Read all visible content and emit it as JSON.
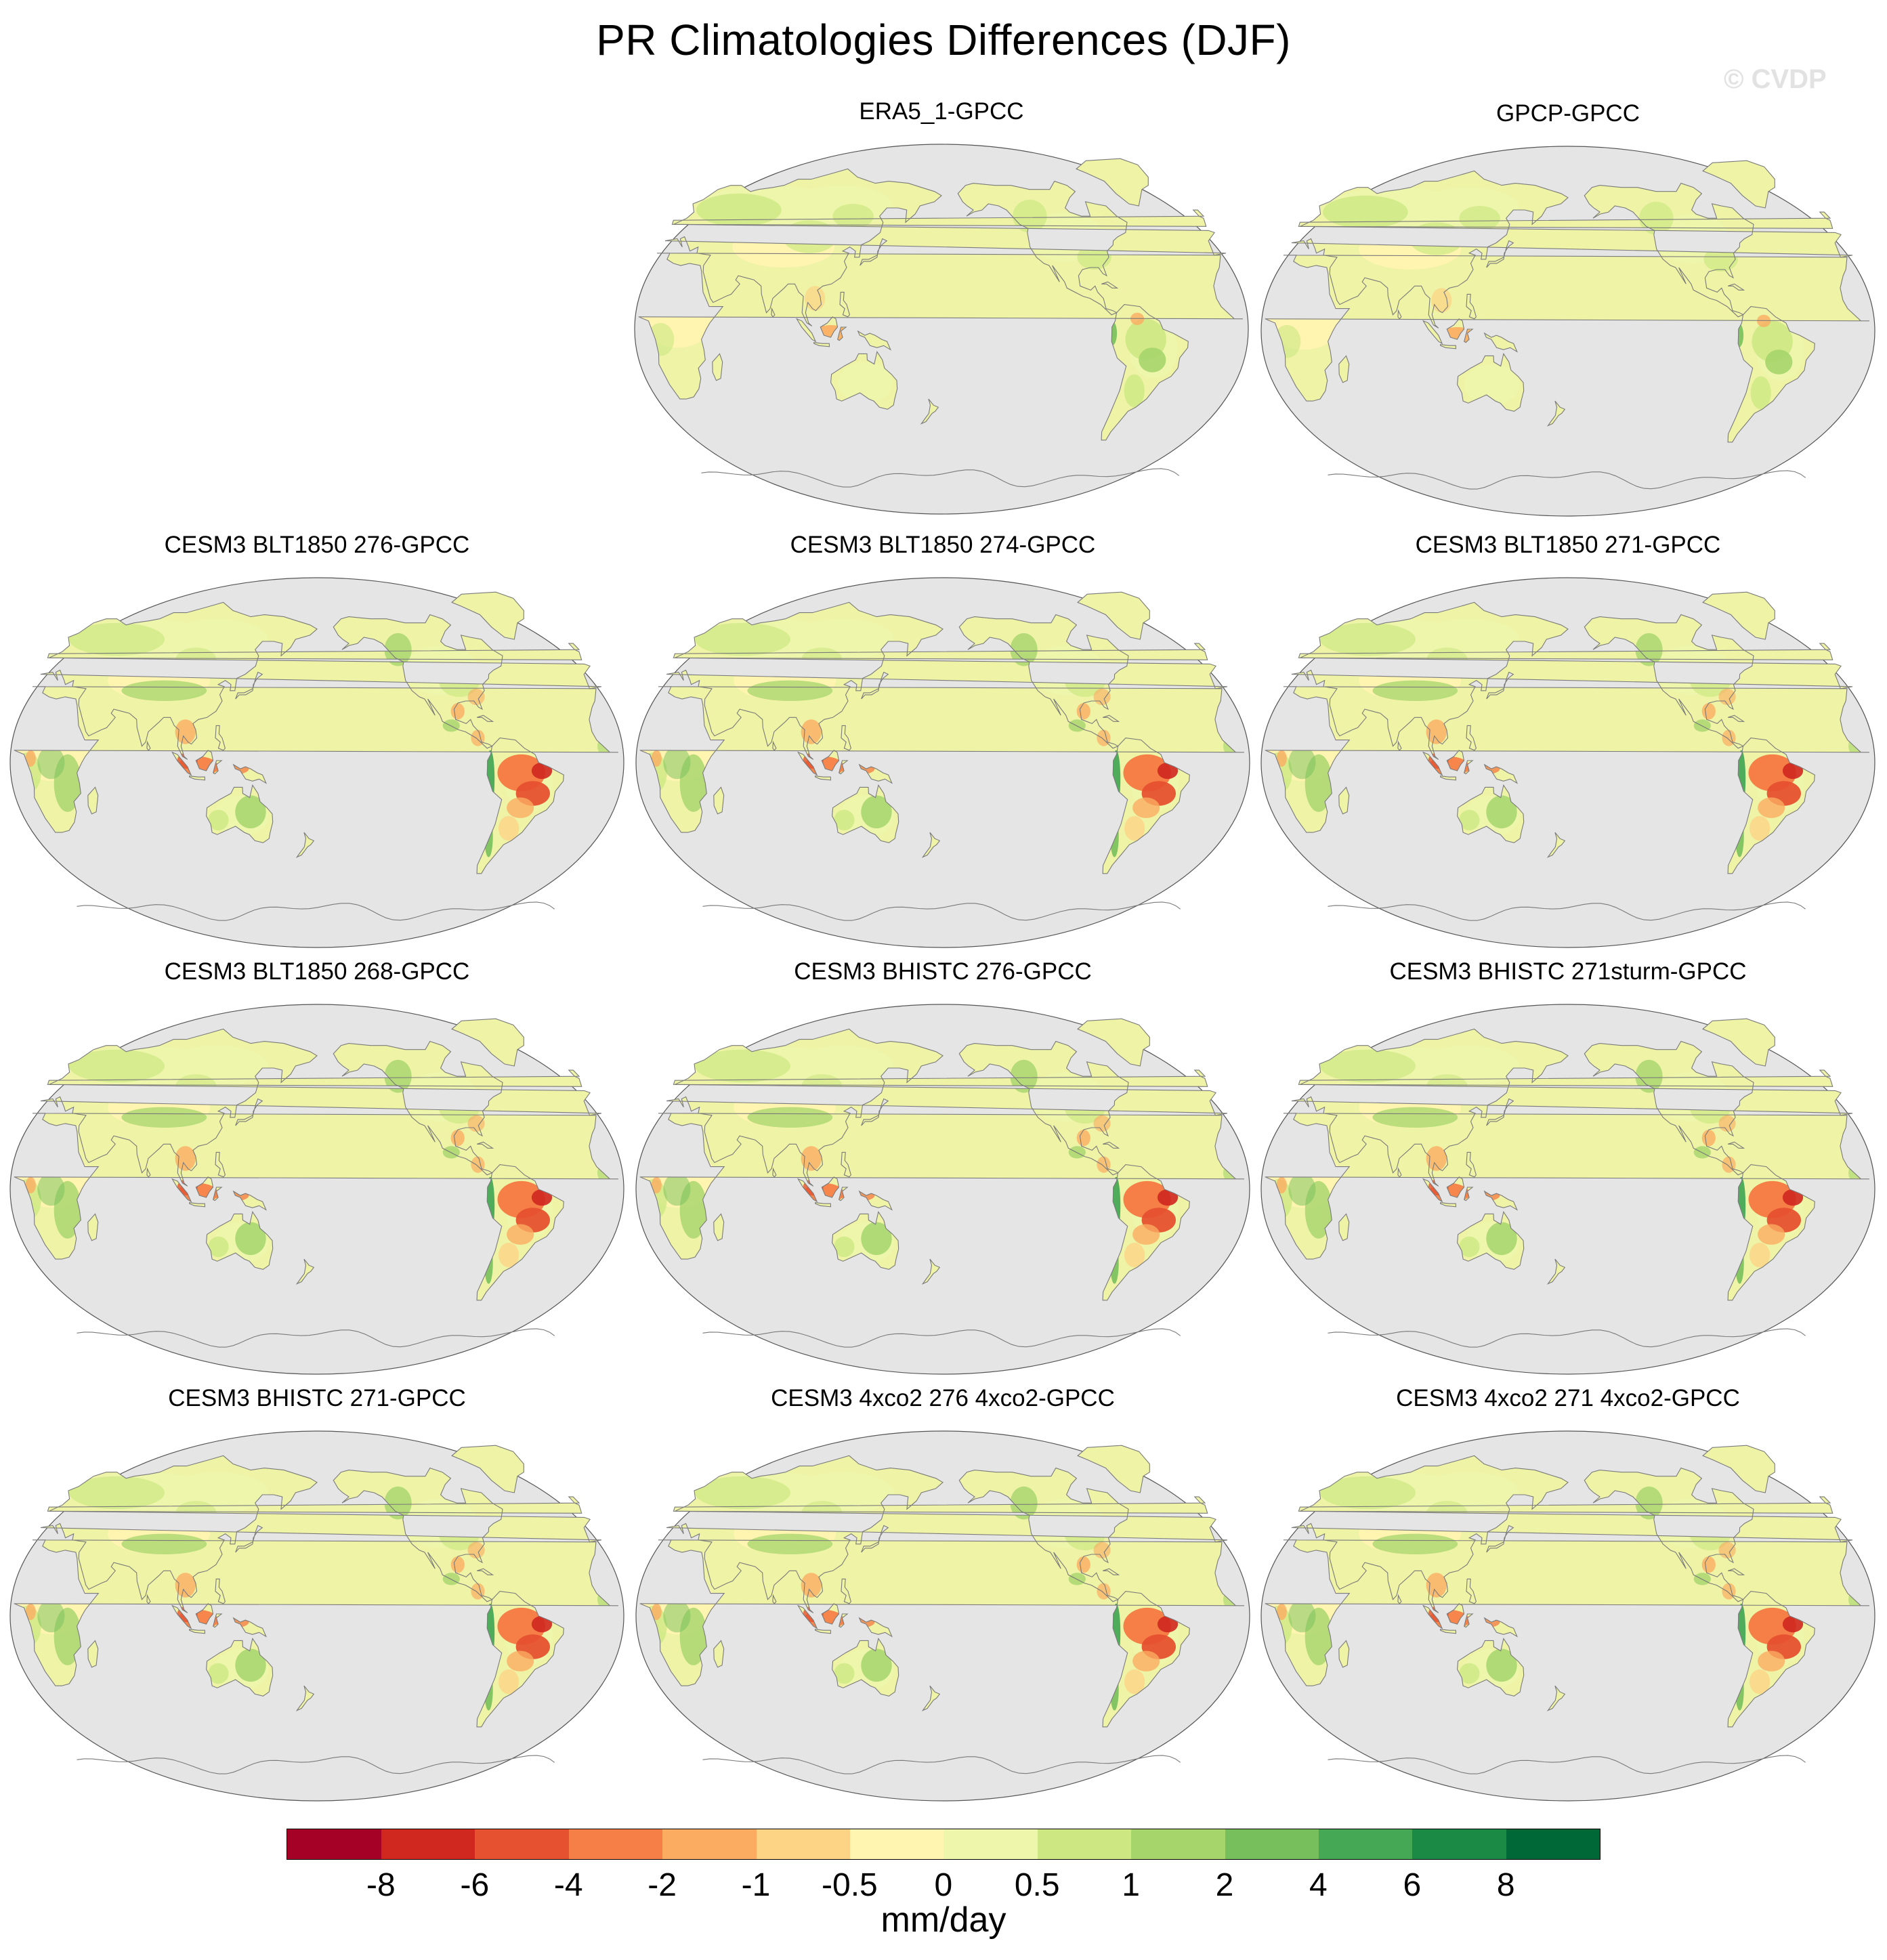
{
  "title": "PR Climatologies Differences (DJF)",
  "watermark": "© CVDP",
  "colors": {
    "ocean": "#e5e5e5",
    "land_base": "#eef3a6",
    "coast": "#7a7a7a",
    "palette": [
      "#a50026",
      "#d0271f",
      "#e6512f",
      "#f57f47",
      "#fbac61",
      "#fdd386",
      "#fff4b0",
      "#edf6ab",
      "#cde883",
      "#a5d56b",
      "#77bf5c",
      "#45a855",
      "#1a8a45",
      "#006837"
    ]
  },
  "panels": [
    {
      "id": "era5",
      "label": "ERA5_1-GPCC",
      "bias": "small"
    },
    {
      "id": "gpcp",
      "label": "GPCP-GPCC",
      "bias": "small"
    },
    {
      "id": "blt276",
      "label": "CESM3 BLT1850 276-GPCC",
      "bias": "large"
    },
    {
      "id": "blt274",
      "label": "CESM3 BLT1850 274-GPCC",
      "bias": "large"
    },
    {
      "id": "blt271",
      "label": "CESM3 BLT1850 271-GPCC",
      "bias": "large"
    },
    {
      "id": "blt268",
      "label": "CESM3 BLT1850 268-GPCC",
      "bias": "large"
    },
    {
      "id": "bhist276",
      "label": "CESM3 BHISTC 276-GPCC",
      "bias": "large"
    },
    {
      "id": "bhist271sturm",
      "label": "CESM3 BHISTC 271sturm-GPCC",
      "bias": "large"
    },
    {
      "id": "bhist271",
      "label": "CESM3 BHISTC 271-GPCC",
      "bias": "large"
    },
    {
      "id": "x4co2_276",
      "label": "CESM3 4xco2 276 4xco2-GPCC",
      "bias": "large"
    },
    {
      "id": "x4co2_271",
      "label": "CESM3 4xco2 271 4xco2-GPCC",
      "bias": "large"
    }
  ],
  "colorbar": {
    "units": "mm/day",
    "levels": [
      "-8",
      "-6",
      "-4",
      "-2",
      "-1",
      "-0.5",
      "0",
      "0.5",
      "1",
      "2",
      "4",
      "6",
      "8"
    ]
  }
}
